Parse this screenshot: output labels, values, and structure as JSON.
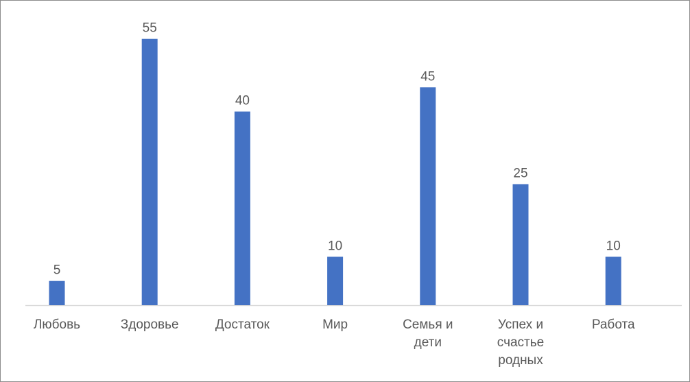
{
  "chart_data": {
    "type": "bar",
    "title": "",
    "xlabel": "",
    "ylabel": "",
    "categories": [
      "Любовь",
      "Здоровье",
      "Достаток",
      "Мир",
      "Семья и\nдети",
      "Успех и\nсчастье\nродных",
      "Работа"
    ],
    "values": [
      5,
      55,
      40,
      10,
      45,
      25,
      10
    ],
    "data_labels": [
      "5",
      "55",
      "40",
      "10",
      "45",
      "25",
      "10"
    ],
    "ylim": [
      0,
      60
    ],
    "grid": false,
    "legend": "none",
    "bar_color": "#4472c4",
    "label_color": "#595959",
    "axis_color": "#d9d9d9"
  }
}
